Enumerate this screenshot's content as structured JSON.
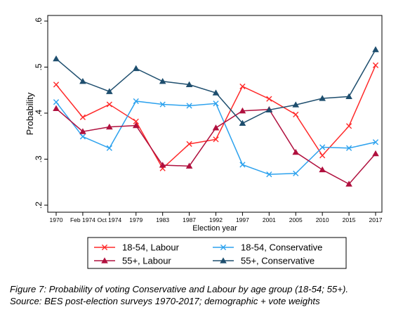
{
  "chart_data": {
    "type": "line",
    "title": "",
    "xlabel": "Election year",
    "ylabel": "Probability",
    "x": [
      "1970",
      "Feb 1974",
      "Oct 1974",
      "1979",
      "1983",
      "1987",
      "1992",
      "1997",
      "2001",
      "2005",
      "2010",
      "2015",
      "2017"
    ],
    "yticks": [
      ".2",
      ".3",
      ".4",
      ".5",
      ".6"
    ],
    "ylim": [
      0.2,
      0.6
    ],
    "grid": "horizontal-dashed",
    "legend": "bottom-outside",
    "series": [
      {
        "name": "18-54, Labour",
        "color": "#ff2a2a",
        "marker": "x",
        "values": [
          0.462,
          0.391,
          0.419,
          0.382,
          0.28,
          0.333,
          0.343,
          0.458,
          0.431,
          0.397,
          0.308,
          0.372,
          0.504
        ]
      },
      {
        "name": "18-54, Conservative",
        "color": "#2da2ee",
        "marker": "x",
        "values": [
          0.424,
          0.349,
          0.324,
          0.426,
          0.419,
          0.416,
          0.421,
          0.288,
          0.267,
          0.269,
          0.326,
          0.324,
          0.337
        ]
      },
      {
        "name": "55+, Labour",
        "color": "#b0103e",
        "marker": "triangle",
        "values": [
          0.41,
          0.36,
          0.37,
          0.373,
          0.287,
          0.285,
          0.368,
          0.405,
          0.408,
          0.315,
          0.277,
          0.246,
          0.312
        ]
      },
      {
        "name": "55+, Conservative",
        "color": "#1e4e6e",
        "marker": "triangle",
        "values": [
          0.518,
          0.469,
          0.447,
          0.497,
          0.469,
          0.462,
          0.444,
          0.378,
          0.407,
          0.418,
          0.432,
          0.436,
          0.538
        ]
      }
    ]
  },
  "caption": {
    "line1": "Figure 7: Probability of voting Conservative and Labour by age group (18-54; 55+).",
    "line2": "Source: BES post-election surveys 1970-2017; demographic + vote weights"
  }
}
